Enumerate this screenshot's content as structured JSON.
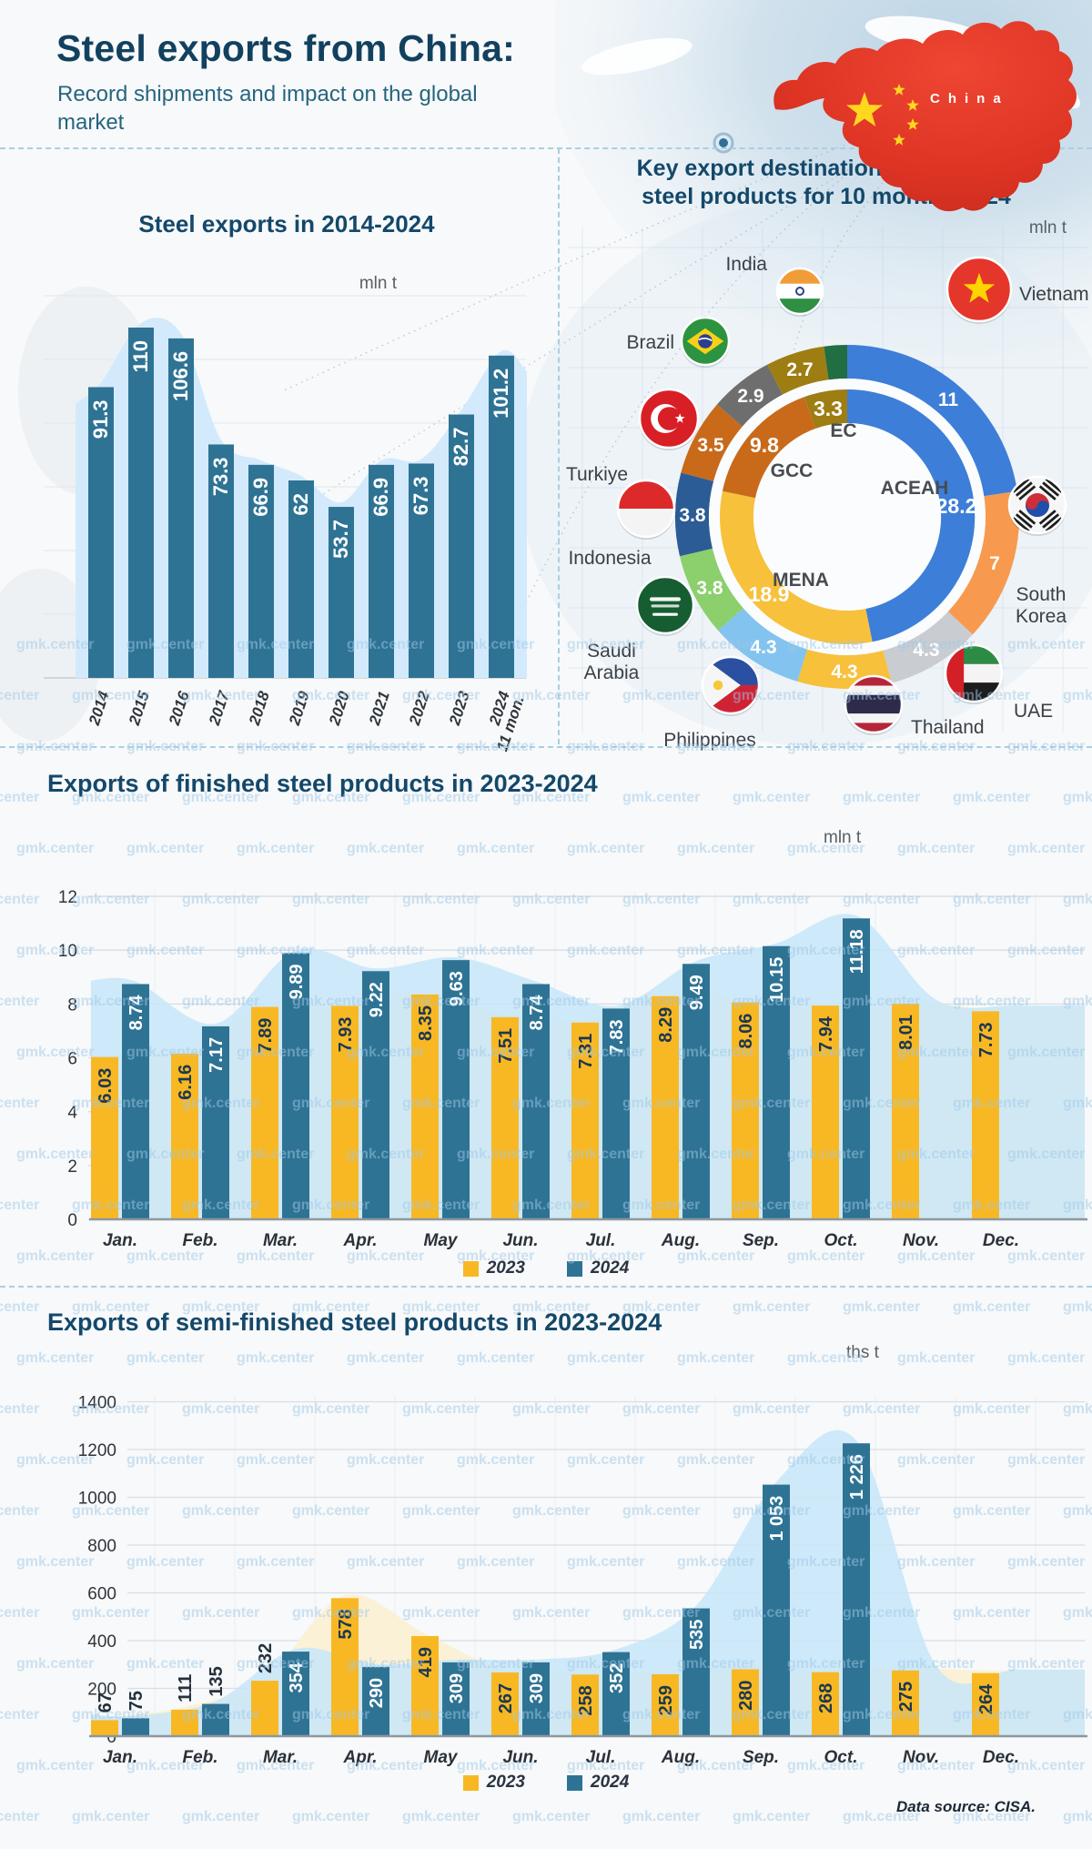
{
  "header": {
    "title": "Steel exports from China:",
    "subtitle_line1": "Record shipments and impact on the global",
    "subtitle_line2": "market",
    "map_label": "China"
  },
  "watermark": "gmk.center",
  "source": "Data source: CISA.",
  "chart_data": [
    {
      "type": "bar",
      "title": "Steel exports in 2014-2024",
      "ylabel": "mln t",
      "categories": [
        "2014",
        "2015",
        "2016",
        "2017",
        "2018",
        "2019",
        "2020",
        "2021",
        "2022",
        "2023",
        "2024"
      ],
      "last_category_note": "11 mon.",
      "values": [
        91.3,
        110,
        106.6,
        73.3,
        66.9,
        62,
        53.7,
        66.9,
        67.3,
        82.7,
        101.2
      ],
      "bar_color": "#2e7394",
      "area_color": "#d3eafc",
      "grid": true,
      "legend_position": "none"
    },
    {
      "type": "pie",
      "title_line1": "Key export destinations of finished",
      "title_line2": "steel products for 10 months 2024",
      "unit": "mln t",
      "rings": {
        "outer": [
          {
            "label": "Vietnam",
            "value": 11,
            "color": "#3d7ed8"
          },
          {
            "label": "South Korea",
            "value": 7,
            "color": "#f79a4f"
          },
          {
            "label": "UAE",
            "value": 4.3,
            "color": "#c9cdd2"
          },
          {
            "label": "Thailand",
            "value": 4.3,
            "color": "#f7c13c"
          },
          {
            "label": "Philippines",
            "value": 4.3,
            "color": "#83c3ef"
          },
          {
            "label": "Saudi Arabia",
            "value": 3.8,
            "color": "#8ccf6d"
          },
          {
            "label": "Indonesia",
            "value": 3.8,
            "color": "#2c5c95"
          },
          {
            "label": "Turkiye",
            "value": 3.5,
            "color": "#c96a1b"
          },
          {
            "label": "Brazil",
            "value": 2.9,
            "color": "#6e6e6e"
          },
          {
            "label": "India",
            "value": 2.7,
            "color": "#9e7d13"
          },
          {
            "label": "",
            "value": 1.05,
            "color": "#206e42"
          }
        ],
        "inner": [
          {
            "label": "ACEAH",
            "value": 28.2,
            "color": "#3d7ed8"
          },
          {
            "label": "MENA",
            "value": 18.9,
            "color": "#f7c13c"
          },
          {
            "label": "GCC",
            "value": 9.8,
            "color": "#c96a1b"
          },
          {
            "label": "EC",
            "value": 3.3,
            "color": "#9e7d13"
          }
        ]
      }
    },
    {
      "type": "bar",
      "title": "Exports of finished steel products in 2023-2024",
      "ylabel": "mln t",
      "categories": [
        "Jan.",
        "Feb.",
        "Mar.",
        "Apr.",
        "May",
        "Jun.",
        "Jul.",
        "Aug.",
        "Sep.",
        "Oct.",
        "Nov.",
        "Dec."
      ],
      "yticks": [
        0,
        2,
        4,
        6,
        8,
        10,
        12
      ],
      "ylim": [
        0,
        12
      ],
      "series": [
        {
          "name": "2023",
          "color": "#f8b824",
          "area_color": "#fbf1d7",
          "values": [
            6.03,
            6.16,
            7.89,
            7.93,
            8.35,
            7.51,
            7.31,
            8.29,
            8.06,
            7.94,
            8.01,
            7.73
          ]
        },
        {
          "name": "2024",
          "color": "#2e7394",
          "area_color": "#c8e6f8",
          "values": [
            8.74,
            7.17,
            9.89,
            9.22,
            9.63,
            8.74,
            7.83,
            9.49,
            10.15,
            11.18,
            null,
            null
          ]
        }
      ]
    },
    {
      "type": "bar",
      "title": "Exports of semi-finished steel products in 2023-2024",
      "ylabel": "ths t",
      "categories": [
        "Jan.",
        "Feb.",
        "Mar.",
        "Apr.",
        "May",
        "Jun.",
        "Jul.",
        "Aug.",
        "Sep.",
        "Oct.",
        "Nov.",
        "Dec."
      ],
      "yticks": [
        0,
        200,
        400,
        600,
        800,
        1000,
        1200,
        1400
      ],
      "ylim": [
        0,
        1400
      ],
      "series": [
        {
          "name": "2023",
          "color": "#f8b824",
          "area_color": "#fbf1d7",
          "values": [
            67,
            111,
            232,
            578,
            419,
            267,
            258,
            259,
            280,
            268,
            275,
            264
          ]
        },
        {
          "name": "2024",
          "color": "#2e7394",
          "area_color": "#c8e6f8",
          "values": [
            75,
            135,
            354,
            290,
            309,
            309,
            352,
            535,
            1053,
            1226,
            null,
            null
          ],
          "value_labels": [
            "75",
            "135",
            "354",
            "290",
            "309",
            "309",
            "352",
            "535",
            "1 053",
            "1 226",
            "",
            ""
          ]
        }
      ]
    }
  ]
}
